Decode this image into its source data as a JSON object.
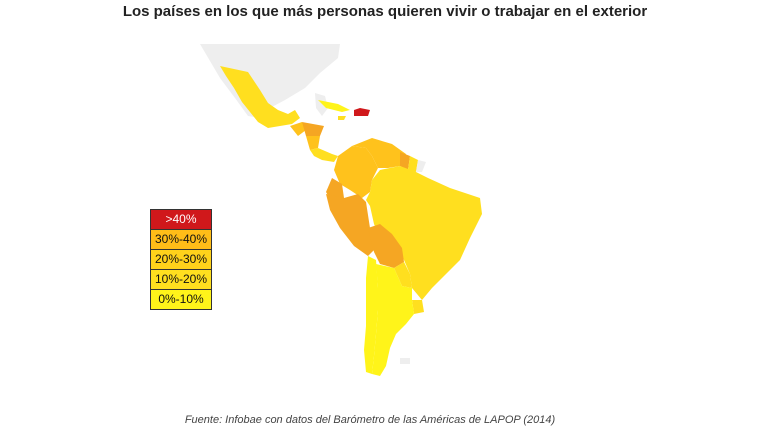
{
  "title": "Los países en los que más personas quieren vivir o trabajar en el exterior",
  "legend": [
    {
      "label": ">40%",
      "color": "#d0181b"
    },
    {
      "label": "30%-40%",
      "color": "#ffbd18"
    },
    {
      "label": "20%-30%",
      "color": "#ffd21b"
    },
    {
      "label": "10%-20%",
      "color": "#ffdf1f"
    },
    {
      "label": "0%-10%",
      "color": "#fff41a"
    }
  ],
  "colors": {
    "no_data": "#eeeeee",
    "range_40_plus": "#d0181b",
    "range_30_40": "#f5a623",
    "range_20_30": "#ffc21c",
    "range_10_20": "#ffdf1f",
    "range_0_10": "#fff41a"
  },
  "source": "Fuente: Infobae con datos del Barómetro de las Américas de LAPOP (2014)"
}
